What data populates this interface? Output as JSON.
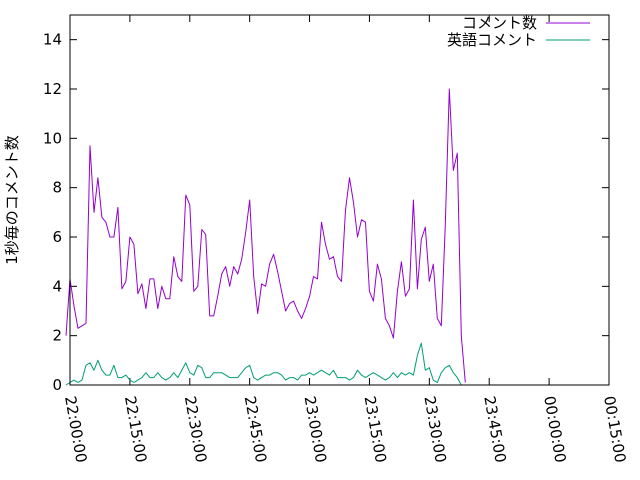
{
  "chart_data": {
    "type": "line",
    "ylabel": "1秒毎のコメント数",
    "xlabel": "",
    "ylim": [
      0,
      15
    ],
    "yticks": [
      0,
      2,
      4,
      6,
      8,
      10,
      12,
      14
    ],
    "xlim": [
      "22:00:00",
      "00:15:00"
    ],
    "xticks": [
      "22:00:00",
      "22:15:00",
      "22:30:00",
      "22:45:00",
      "23:00:00",
      "23:15:00",
      "23:30:00",
      "23:45:00",
      "00:00:00",
      "00:15:00"
    ],
    "legend_position": "top-right",
    "grid": false,
    "series": [
      {
        "name": "コメント数",
        "color": "#9400d3",
        "points": [
          [
            "21:59:00",
            2.0
          ],
          [
            "22:00:00",
            4.3
          ],
          [
            "22:01:00",
            3.2
          ],
          [
            "22:02:00",
            2.3
          ],
          [
            "22:03:00",
            2.4
          ],
          [
            "22:04:00",
            2.5
          ],
          [
            "22:05:00",
            9.7
          ],
          [
            "22:06:00",
            7.0
          ],
          [
            "22:07:00",
            8.4
          ],
          [
            "22:08:00",
            6.8
          ],
          [
            "22:09:00",
            6.6
          ],
          [
            "22:10:00",
            6.0
          ],
          [
            "22:11:00",
            6.0
          ],
          [
            "22:12:00",
            7.2
          ],
          [
            "22:13:00",
            3.9
          ],
          [
            "22:14:00",
            4.2
          ],
          [
            "22:15:00",
            6.0
          ],
          [
            "22:16:00",
            5.7
          ],
          [
            "22:17:00",
            3.7
          ],
          [
            "22:18:00",
            4.1
          ],
          [
            "22:19:00",
            3.1
          ],
          [
            "22:20:00",
            4.3
          ],
          [
            "22:21:00",
            4.3
          ],
          [
            "22:22:00",
            3.1
          ],
          [
            "22:23:00",
            4.0
          ],
          [
            "22:24:00",
            3.5
          ],
          [
            "22:25:00",
            3.5
          ],
          [
            "22:26:00",
            5.2
          ],
          [
            "22:27:00",
            4.4
          ],
          [
            "22:28:00",
            4.2
          ],
          [
            "22:29:00",
            7.7
          ],
          [
            "22:30:00",
            7.3
          ],
          [
            "22:31:00",
            3.8
          ],
          [
            "22:32:00",
            4.0
          ],
          [
            "22:33:00",
            6.3
          ],
          [
            "22:34:00",
            6.1
          ],
          [
            "22:35:00",
            2.8
          ],
          [
            "22:36:00",
            2.8
          ],
          [
            "22:37:00",
            3.6
          ],
          [
            "22:38:00",
            4.5
          ],
          [
            "22:39:00",
            4.8
          ],
          [
            "22:40:00",
            4.0
          ],
          [
            "22:41:00",
            4.8
          ],
          [
            "22:42:00",
            4.5
          ],
          [
            "22:43:00",
            5.1
          ],
          [
            "22:44:00",
            6.2
          ],
          [
            "22:45:00",
            7.5
          ],
          [
            "22:46:00",
            4.4
          ],
          [
            "22:47:00",
            2.9
          ],
          [
            "22:48:00",
            4.1
          ],
          [
            "22:49:00",
            4.0
          ],
          [
            "22:50:00",
            4.9
          ],
          [
            "22:51:00",
            5.3
          ],
          [
            "22:52:00",
            4.6
          ],
          [
            "22:53:00",
            3.8
          ],
          [
            "22:54:00",
            3.0
          ],
          [
            "22:55:00",
            3.3
          ],
          [
            "22:56:00",
            3.4
          ],
          [
            "22:57:00",
            3.0
          ],
          [
            "22:58:00",
            2.7
          ],
          [
            "22:59:00",
            3.1
          ],
          [
            "23:00:00",
            3.6
          ],
          [
            "23:01:00",
            4.4
          ],
          [
            "23:02:00",
            4.3
          ],
          [
            "23:03:00",
            6.6
          ],
          [
            "23:04:00",
            5.7
          ],
          [
            "23:05:00",
            5.1
          ],
          [
            "23:06:00",
            5.2
          ],
          [
            "23:07:00",
            4.4
          ],
          [
            "23:08:00",
            4.2
          ],
          [
            "23:09:00",
            7.1
          ],
          [
            "23:10:00",
            8.4
          ],
          [
            "23:11:00",
            7.4
          ],
          [
            "23:12:00",
            6.0
          ],
          [
            "23:13:00",
            6.7
          ],
          [
            "23:14:00",
            6.6
          ],
          [
            "23:15:00",
            3.8
          ],
          [
            "23:16:00",
            3.4
          ],
          [
            "23:17:00",
            4.9
          ],
          [
            "23:18:00",
            4.3
          ],
          [
            "23:19:00",
            2.7
          ],
          [
            "23:20:00",
            2.4
          ],
          [
            "23:21:00",
            1.9
          ],
          [
            "23:22:00",
            3.8
          ],
          [
            "23:23:00",
            5.0
          ],
          [
            "23:24:00",
            3.6
          ],
          [
            "23:25:00",
            3.9
          ],
          [
            "23:26:00",
            7.5
          ],
          [
            "23:27:00",
            3.9
          ],
          [
            "23:28:00",
            5.9
          ],
          [
            "23:29:00",
            6.4
          ],
          [
            "23:30:00",
            4.2
          ],
          [
            "23:31:00",
            4.9
          ],
          [
            "23:32:00",
            2.7
          ],
          [
            "23:33:00",
            2.4
          ],
          [
            "23:34:00",
            6.5
          ],
          [
            "23:35:00",
            12.0
          ],
          [
            "23:36:00",
            8.7
          ],
          [
            "23:37:00",
            9.4
          ],
          [
            "23:38:00",
            2.0
          ],
          [
            "23:39:00",
            0.1
          ]
        ]
      },
      {
        "name": "英語コメント",
        "color": "#009e73",
        "points": [
          [
            "21:59:00",
            0.0
          ],
          [
            "22:00:00",
            0.1
          ],
          [
            "22:01:00",
            0.2
          ],
          [
            "22:02:00",
            0.1
          ],
          [
            "22:03:00",
            0.2
          ],
          [
            "22:04:00",
            0.8
          ],
          [
            "22:05:00",
            0.9
          ],
          [
            "22:06:00",
            0.6
          ],
          [
            "22:07:00",
            1.0
          ],
          [
            "22:08:00",
            0.6
          ],
          [
            "22:09:00",
            0.4
          ],
          [
            "22:10:00",
            0.4
          ],
          [
            "22:11:00",
            0.8
          ],
          [
            "22:12:00",
            0.3
          ],
          [
            "22:13:00",
            0.3
          ],
          [
            "22:14:00",
            0.4
          ],
          [
            "22:15:00",
            0.2
          ],
          [
            "22:16:00",
            0.1
          ],
          [
            "22:17:00",
            0.2
          ],
          [
            "22:18:00",
            0.3
          ],
          [
            "22:19:00",
            0.5
          ],
          [
            "22:20:00",
            0.3
          ],
          [
            "22:21:00",
            0.3
          ],
          [
            "22:22:00",
            0.5
          ],
          [
            "22:23:00",
            0.3
          ],
          [
            "22:24:00",
            0.2
          ],
          [
            "22:25:00",
            0.3
          ],
          [
            "22:26:00",
            0.5
          ],
          [
            "22:27:00",
            0.3
          ],
          [
            "22:28:00",
            0.6
          ],
          [
            "22:29:00",
            0.9
          ],
          [
            "22:30:00",
            0.5
          ],
          [
            "22:31:00",
            0.4
          ],
          [
            "22:32:00",
            0.8
          ],
          [
            "22:33:00",
            0.7
          ],
          [
            "22:34:00",
            0.3
          ],
          [
            "22:35:00",
            0.3
          ],
          [
            "22:36:00",
            0.5
          ],
          [
            "22:37:00",
            0.5
          ],
          [
            "22:38:00",
            0.5
          ],
          [
            "22:39:00",
            0.4
          ],
          [
            "22:40:00",
            0.3
          ],
          [
            "22:41:00",
            0.3
          ],
          [
            "22:42:00",
            0.3
          ],
          [
            "22:43:00",
            0.5
          ],
          [
            "22:44:00",
            0.7
          ],
          [
            "22:45:00",
            0.8
          ],
          [
            "22:46:00",
            0.3
          ],
          [
            "22:47:00",
            0.2
          ],
          [
            "22:48:00",
            0.3
          ],
          [
            "22:49:00",
            0.4
          ],
          [
            "22:50:00",
            0.4
          ],
          [
            "22:51:00",
            0.5
          ],
          [
            "22:52:00",
            0.5
          ],
          [
            "22:53:00",
            0.4
          ],
          [
            "22:54:00",
            0.2
          ],
          [
            "22:55:00",
            0.3
          ],
          [
            "22:56:00",
            0.3
          ],
          [
            "22:57:00",
            0.2
          ],
          [
            "22:58:00",
            0.4
          ],
          [
            "22:59:00",
            0.4
          ],
          [
            "23:00:00",
            0.5
          ],
          [
            "23:01:00",
            0.4
          ],
          [
            "23:02:00",
            0.5
          ],
          [
            "23:03:00",
            0.6
          ],
          [
            "23:04:00",
            0.5
          ],
          [
            "23:05:00",
            0.4
          ],
          [
            "23:06:00",
            0.6
          ],
          [
            "23:07:00",
            0.3
          ],
          [
            "23:08:00",
            0.3
          ],
          [
            "23:09:00",
            0.3
          ],
          [
            "23:10:00",
            0.2
          ],
          [
            "23:11:00",
            0.3
          ],
          [
            "23:12:00",
            0.6
          ],
          [
            "23:13:00",
            0.4
          ],
          [
            "23:14:00",
            0.3
          ],
          [
            "23:15:00",
            0.4
          ],
          [
            "23:16:00",
            0.5
          ],
          [
            "23:17:00",
            0.4
          ],
          [
            "23:18:00",
            0.3
          ],
          [
            "23:19:00",
            0.2
          ],
          [
            "23:20:00",
            0.3
          ],
          [
            "23:21:00",
            0.5
          ],
          [
            "23:22:00",
            0.3
          ],
          [
            "23:23:00",
            0.5
          ],
          [
            "23:24:00",
            0.4
          ],
          [
            "23:25:00",
            0.5
          ],
          [
            "23:26:00",
            0.4
          ],
          [
            "23:27:00",
            1.2
          ],
          [
            "23:28:00",
            1.7
          ],
          [
            "23:29:00",
            0.6
          ],
          [
            "23:30:00",
            0.7
          ],
          [
            "23:31:00",
            0.2
          ],
          [
            "23:32:00",
            0.1
          ],
          [
            "23:33:00",
            0.5
          ],
          [
            "23:34:00",
            0.7
          ],
          [
            "23:35:00",
            0.8
          ],
          [
            "23:36:00",
            0.5
          ],
          [
            "23:37:00",
            0.3
          ],
          [
            "23:38:00",
            0.0
          ]
        ]
      }
    ]
  }
}
